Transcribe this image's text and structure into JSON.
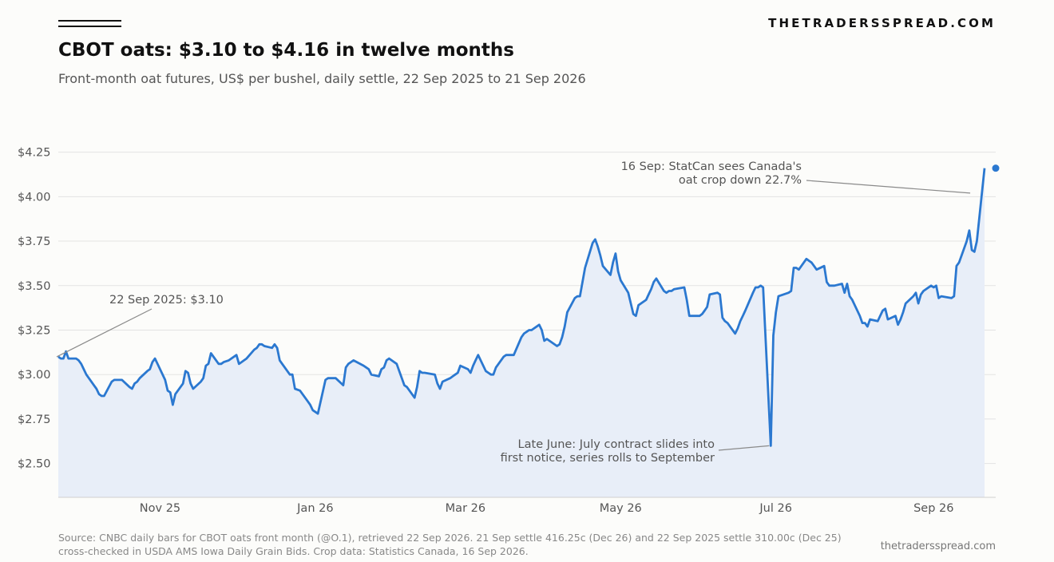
{
  "site_name": "THETRADERSSPREAD.COM",
  "site_url": "thetradersspread.com",
  "source_text": "Source: CNBC daily bars for CBOT oats front month (@O.1), retrieved 22 Sep 2026. 21 Sep settle 416.25c (Dec 26) and 22 Sep 2025 settle 310.00c (Dec 25) cross-checked in USDA AMS Iowa Daily Grain Bids. Crop data: Statistics Canada, 16 Sep 2026.",
  "colors": {
    "line": "#2b78d0",
    "fill": "#e8eef8",
    "grid": "#e3e3e3"
  },
  "chart_data": {
    "type": "line",
    "title": "CBOT oats: $3.10 to $4.16 in twelve months",
    "subtitle": "Front-month oat futures, US$ per bushel, daily settle, 22 Sep 2025 to 21 Sep 2026",
    "xlabel": "",
    "ylabel": "",
    "xlim": [
      "2025-09-22",
      "2026-09-21"
    ],
    "ylim": [
      2.31,
      4.32
    ],
    "yticks": [
      2.5,
      2.75,
      3.0,
      3.25,
      3.5,
      3.75,
      4.0,
      4.25
    ],
    "ytick_labels": [
      "$2.50",
      "$2.75",
      "$3.00",
      "$3.25",
      "$3.50",
      "$3.75",
      "$4.00",
      "$4.25"
    ],
    "xticks": [
      "2025-11-01",
      "2026-01-01",
      "2026-03-01",
      "2026-05-01",
      "2026-07-01",
      "2026-09-01"
    ],
    "xtick_labels": [
      "Nov 25",
      "Jan 26",
      "Mar 26",
      "May 26",
      "Jul 26",
      "Sep 26"
    ],
    "grid": true,
    "legend": "none",
    "series": [
      {
        "points": [
          [
            "2025-09-22",
            3.1
          ],
          [
            "2025-09-23",
            3.09
          ],
          [
            "2025-09-24",
            3.09
          ],
          [
            "2025-09-25",
            3.13
          ],
          [
            "2025-09-26",
            3.09
          ],
          [
            "2025-09-29",
            3.09
          ],
          [
            "2025-09-30",
            3.08
          ],
          [
            "2025-10-01",
            3.06
          ],
          [
            "2025-10-02",
            3.03
          ],
          [
            "2025-10-03",
            3.0
          ],
          [
            "2025-10-06",
            2.94
          ],
          [
            "2025-10-07",
            2.92
          ],
          [
            "2025-10-08",
            2.89
          ],
          [
            "2025-10-09",
            2.88
          ],
          [
            "2025-10-10",
            2.88
          ],
          [
            "2025-10-13",
            2.96
          ],
          [
            "2025-10-14",
            2.97
          ],
          [
            "2025-10-15",
            2.97
          ],
          [
            "2025-10-16",
            2.97
          ],
          [
            "2025-10-17",
            2.97
          ],
          [
            "2025-10-20",
            2.93
          ],
          [
            "2025-10-21",
            2.92
          ],
          [
            "2025-10-22",
            2.95
          ],
          [
            "2025-10-23",
            2.96
          ],
          [
            "2025-10-24",
            2.98
          ],
          [
            "2025-10-27",
            3.02
          ],
          [
            "2025-10-28",
            3.03
          ],
          [
            "2025-10-29",
            3.07
          ],
          [
            "2025-10-30",
            3.09
          ],
          [
            "2025-10-31",
            3.06
          ],
          [
            "2025-11-03",
            2.97
          ],
          [
            "2025-11-04",
            2.91
          ],
          [
            "2025-11-05",
            2.9
          ],
          [
            "2025-11-06",
            2.83
          ],
          [
            "2025-11-07",
            2.89
          ],
          [
            "2025-11-10",
            2.95
          ],
          [
            "2025-11-11",
            3.02
          ],
          [
            "2025-11-12",
            3.01
          ],
          [
            "2025-11-13",
            2.95
          ],
          [
            "2025-11-14",
            2.92
          ],
          [
            "2025-11-17",
            2.96
          ],
          [
            "2025-11-18",
            2.98
          ],
          [
            "2025-11-19",
            3.05
          ],
          [
            "2025-11-20",
            3.06
          ],
          [
            "2025-11-21",
            3.12
          ],
          [
            "2025-11-24",
            3.06
          ],
          [
            "2025-11-25",
            3.06
          ],
          [
            "2025-11-26",
            3.07
          ],
          [
            "2025-11-28",
            3.08
          ],
          [
            "2025-12-01",
            3.11
          ],
          [
            "2025-12-02",
            3.06
          ],
          [
            "2025-12-03",
            3.07
          ],
          [
            "2025-12-04",
            3.08
          ],
          [
            "2025-12-05",
            3.09
          ],
          [
            "2025-12-08",
            3.14
          ],
          [
            "2025-12-09",
            3.15
          ],
          [
            "2025-12-10",
            3.17
          ],
          [
            "2025-12-11",
            3.17
          ],
          [
            "2025-12-12",
            3.16
          ],
          [
            "2025-12-15",
            3.15
          ],
          [
            "2025-12-16",
            3.17
          ],
          [
            "2025-12-17",
            3.15
          ],
          [
            "2025-12-18",
            3.08
          ],
          [
            "2025-12-19",
            3.06
          ],
          [
            "2025-12-22",
            3.0
          ],
          [
            "2025-12-23",
            3.0
          ],
          [
            "2025-12-24",
            2.92
          ],
          [
            "2025-12-26",
            2.91
          ],
          [
            "2025-12-29",
            2.85
          ],
          [
            "2025-12-30",
            2.83
          ],
          [
            "2025-12-31",
            2.8
          ],
          [
            "2026-01-02",
            2.78
          ],
          [
            "2026-01-05",
            2.97
          ],
          [
            "2026-01-06",
            2.98
          ],
          [
            "2026-01-07",
            2.98
          ],
          [
            "2026-01-08",
            2.98
          ],
          [
            "2026-01-09",
            2.98
          ],
          [
            "2026-01-12",
            2.94
          ],
          [
            "2026-01-13",
            3.04
          ],
          [
            "2026-01-14",
            3.06
          ],
          [
            "2026-01-15",
            3.07
          ],
          [
            "2026-01-16",
            3.08
          ],
          [
            "2026-01-20",
            3.05
          ],
          [
            "2026-01-21",
            3.04
          ],
          [
            "2026-01-22",
            3.03
          ],
          [
            "2026-01-23",
            3.0
          ],
          [
            "2026-01-26",
            2.99
          ],
          [
            "2026-01-27",
            3.03
          ],
          [
            "2026-01-28",
            3.04
          ],
          [
            "2026-01-29",
            3.08
          ],
          [
            "2026-01-30",
            3.09
          ],
          [
            "2026-02-02",
            3.06
          ],
          [
            "2026-02-03",
            3.02
          ],
          [
            "2026-02-04",
            2.98
          ],
          [
            "2026-02-05",
            2.94
          ],
          [
            "2026-02-06",
            2.93
          ],
          [
            "2026-02-09",
            2.87
          ],
          [
            "2026-02-10",
            2.93
          ],
          [
            "2026-02-11",
            3.02
          ],
          [
            "2026-02-12",
            3.01
          ],
          [
            "2026-02-13",
            3.01
          ],
          [
            "2026-02-17",
            3.0
          ],
          [
            "2026-02-18",
            2.95
          ],
          [
            "2026-02-19",
            2.92
          ],
          [
            "2026-02-20",
            2.96
          ],
          [
            "2026-02-23",
            2.98
          ],
          [
            "2026-02-24",
            2.99
          ],
          [
            "2026-02-25",
            3.0
          ],
          [
            "2026-02-26",
            3.01
          ],
          [
            "2026-02-27",
            3.05
          ],
          [
            "2026-03-02",
            3.03
          ],
          [
            "2026-03-03",
            3.01
          ],
          [
            "2026-03-04",
            3.05
          ],
          [
            "2026-03-05",
            3.08
          ],
          [
            "2026-03-06",
            3.11
          ],
          [
            "2026-03-09",
            3.02
          ],
          [
            "2026-03-10",
            3.01
          ],
          [
            "2026-03-11",
            3.0
          ],
          [
            "2026-03-12",
            3.0
          ],
          [
            "2026-03-13",
            3.04
          ],
          [
            "2026-03-16",
            3.1
          ],
          [
            "2026-03-17",
            3.11
          ],
          [
            "2026-03-18",
            3.11
          ],
          [
            "2026-03-19",
            3.11
          ],
          [
            "2026-03-20",
            3.11
          ],
          [
            "2026-03-23",
            3.21
          ],
          [
            "2026-03-24",
            3.23
          ],
          [
            "2026-03-25",
            3.24
          ],
          [
            "2026-03-26",
            3.25
          ],
          [
            "2026-03-27",
            3.25
          ],
          [
            "2026-03-30",
            3.28
          ],
          [
            "2026-03-31",
            3.25
          ],
          [
            "2026-04-01",
            3.19
          ],
          [
            "2026-04-02",
            3.2
          ],
          [
            "2026-04-06",
            3.16
          ],
          [
            "2026-04-07",
            3.17
          ],
          [
            "2026-04-08",
            3.21
          ],
          [
            "2026-04-09",
            3.27
          ],
          [
            "2026-04-10",
            3.35
          ],
          [
            "2026-04-13",
            3.43
          ],
          [
            "2026-04-14",
            3.44
          ],
          [
            "2026-04-15",
            3.44
          ],
          [
            "2026-04-16",
            3.52
          ],
          [
            "2026-04-17",
            3.6
          ],
          [
            "2026-04-20",
            3.74
          ],
          [
            "2026-04-21",
            3.76
          ],
          [
            "2026-04-22",
            3.72
          ],
          [
            "2026-04-23",
            3.67
          ],
          [
            "2026-04-24",
            3.61
          ],
          [
            "2026-04-27",
            3.56
          ],
          [
            "2026-04-28",
            3.63
          ],
          [
            "2026-04-29",
            3.68
          ],
          [
            "2026-04-30",
            3.58
          ],
          [
            "2026-05-01",
            3.53
          ],
          [
            "2026-05-04",
            3.46
          ],
          [
            "2026-05-05",
            3.4
          ],
          [
            "2026-05-06",
            3.34
          ],
          [
            "2026-05-07",
            3.33
          ],
          [
            "2026-05-08",
            3.39
          ],
          [
            "2026-05-11",
            3.42
          ],
          [
            "2026-05-12",
            3.45
          ],
          [
            "2026-05-13",
            3.48
          ],
          [
            "2026-05-14",
            3.52
          ],
          [
            "2026-05-15",
            3.54
          ],
          [
            "2026-05-18",
            3.47
          ],
          [
            "2026-05-19",
            3.46
          ],
          [
            "2026-05-20",
            3.47
          ],
          [
            "2026-05-21",
            3.47
          ],
          [
            "2026-05-22",
            3.48
          ],
          [
            "2026-05-26",
            3.49
          ],
          [
            "2026-05-27",
            3.42
          ],
          [
            "2026-05-28",
            3.33
          ],
          [
            "2026-05-29",
            3.33
          ],
          [
            "2026-06-01",
            3.33
          ],
          [
            "2026-06-02",
            3.34
          ],
          [
            "2026-06-03",
            3.36
          ],
          [
            "2026-06-04",
            3.38
          ],
          [
            "2026-06-05",
            3.45
          ],
          [
            "2026-06-08",
            3.46
          ],
          [
            "2026-06-09",
            3.45
          ],
          [
            "2026-06-10",
            3.32
          ],
          [
            "2026-06-11",
            3.3
          ],
          [
            "2026-06-12",
            3.29
          ],
          [
            "2026-06-15",
            3.23
          ],
          [
            "2026-06-16",
            3.26
          ],
          [
            "2026-06-17",
            3.3
          ],
          [
            "2026-06-18",
            3.33
          ],
          [
            "2026-06-19",
            3.36
          ],
          [
            "2026-06-22",
            3.46
          ],
          [
            "2026-06-23",
            3.49
          ],
          [
            "2026-06-24",
            3.49
          ],
          [
            "2026-06-25",
            3.5
          ],
          [
            "2026-06-26",
            3.49
          ],
          [
            "2026-06-29",
            2.6
          ],
          [
            "2026-06-30",
            3.22
          ],
          [
            "2026-07-01",
            3.35
          ],
          [
            "2026-07-02",
            3.44
          ],
          [
            "2026-07-06",
            3.46
          ],
          [
            "2026-07-07",
            3.47
          ],
          [
            "2026-07-08",
            3.6
          ],
          [
            "2026-07-09",
            3.6
          ],
          [
            "2026-07-10",
            3.59
          ],
          [
            "2026-07-13",
            3.65
          ],
          [
            "2026-07-14",
            3.64
          ],
          [
            "2026-07-15",
            3.63
          ],
          [
            "2026-07-16",
            3.61
          ],
          [
            "2026-07-17",
            3.59
          ],
          [
            "2026-07-20",
            3.61
          ],
          [
            "2026-07-21",
            3.52
          ],
          [
            "2026-07-22",
            3.5
          ],
          [
            "2026-07-23",
            3.5
          ],
          [
            "2026-07-24",
            3.5
          ],
          [
            "2026-07-27",
            3.51
          ],
          [
            "2026-07-28",
            3.46
          ],
          [
            "2026-07-29",
            3.51
          ],
          [
            "2026-07-30",
            3.44
          ],
          [
            "2026-07-31",
            3.42
          ],
          [
            "2026-08-03",
            3.33
          ],
          [
            "2026-08-04",
            3.29
          ],
          [
            "2026-08-05",
            3.29
          ],
          [
            "2026-08-06",
            3.27
          ],
          [
            "2026-08-07",
            3.31
          ],
          [
            "2026-08-10",
            3.3
          ],
          [
            "2026-08-11",
            3.33
          ],
          [
            "2026-08-12",
            3.36
          ],
          [
            "2026-08-13",
            3.37
          ],
          [
            "2026-08-14",
            3.31
          ],
          [
            "2026-08-17",
            3.33
          ],
          [
            "2026-08-18",
            3.28
          ],
          [
            "2026-08-19",
            3.31
          ],
          [
            "2026-08-20",
            3.35
          ],
          [
            "2026-08-21",
            3.4
          ],
          [
            "2026-08-24",
            3.44
          ],
          [
            "2026-08-25",
            3.46
          ],
          [
            "2026-08-26",
            3.4
          ],
          [
            "2026-08-27",
            3.45
          ],
          [
            "2026-08-28",
            3.47
          ],
          [
            "2026-08-31",
            3.5
          ],
          [
            "2026-09-01",
            3.49
          ],
          [
            "2026-09-02",
            3.5
          ],
          [
            "2026-09-03",
            3.43
          ],
          [
            "2026-09-04",
            3.44
          ],
          [
            "2026-09-08",
            3.43
          ],
          [
            "2026-09-09",
            3.44
          ],
          [
            "2026-09-10",
            3.61
          ],
          [
            "2026-09-11",
            3.63
          ],
          [
            "2026-09-14",
            3.75
          ],
          [
            "2026-09-15",
            3.81
          ],
          [
            "2026-09-16",
            3.7
          ],
          [
            "2026-09-17",
            3.69
          ],
          [
            "2026-09-18",
            3.75
          ],
          [
            "2026-09-21",
            4.16
          ]
        ]
      }
    ],
    "annotations": [
      {
        "label": [
          "22 Sep 2025: $3.10"
        ],
        "date": "2025-09-22",
        "value": 3.1
      },
      {
        "label": [
          "16 Sep: StatCan sees Canada's",
          "oat crop down 22.7%"
        ],
        "date": "2026-09-16",
        "value": 4.02
      },
      {
        "label": [
          "Late June: July contract slides into",
          "first notice, series rolls to September"
        ],
        "date": "2026-06-29",
        "value": 2.6
      }
    ]
  }
}
